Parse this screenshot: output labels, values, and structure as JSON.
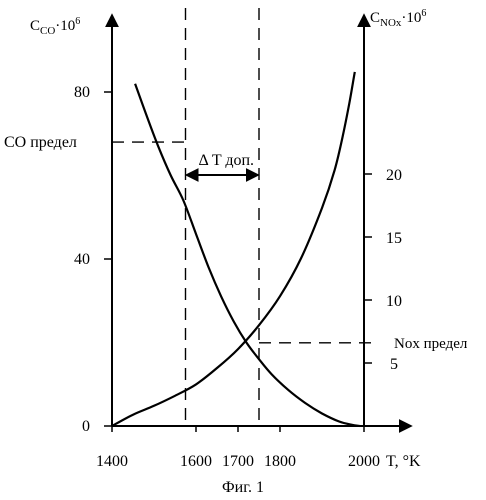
{
  "chart_data": {
    "type": "line",
    "caption": "Фиг. 1",
    "x_axis": {
      "label": "T, °K",
      "ticks": [
        1400,
        1600,
        1700,
        1800,
        2000
      ],
      "range": [
        1400,
        2000
      ]
    },
    "y_left": {
      "label_main": "C",
      "label_sub": "CO",
      "label_mult": "·10",
      "label_exp": "6",
      "range": [
        0,
        80
      ],
      "ticks": [
        0,
        40,
        80
      ]
    },
    "y_right": {
      "label_main": "C",
      "label_sub": "NOx",
      "label_mult": "·10",
      "label_exp": "6",
      "range": [
        0,
        30
      ],
      "ticks": [
        5,
        10,
        15,
        20
      ]
    },
    "series": [
      {
        "curve": "CO",
        "axis": "left",
        "x": [
          1455,
          1480,
          1510,
          1540,
          1570,
          1600,
          1630,
          1660,
          1690,
          1720,
          1750,
          1780,
          1820,
          1860,
          1900,
          1940,
          1970,
          1990
        ],
        "y": [
          82,
          75,
          67,
          60,
          54,
          46,
          38,
          31,
          25,
          20,
          16,
          12.4,
          8.6,
          5.5,
          3,
          1.1,
          0.3,
          0
        ]
      },
      {
        "curve": "NOx",
        "axis": "right",
        "x": [
          1400,
          1450,
          1500,
          1550,
          1600,
          1650,
          1700,
          1750,
          1800,
          1850,
          1900,
          1930,
          1950,
          1965,
          1978
        ],
        "y": [
          0,
          0.9,
          1.6,
          2.4,
          3.3,
          4.6,
          6.1,
          8.0,
          10.3,
          13.3,
          17.3,
          20.3,
          23.1,
          25.6,
          28.1
        ]
      }
    ],
    "limits": {
      "co_label": "CO предел",
      "co_value": 68,
      "nox_label": "Nox предел",
      "nox_value": 6.6
    },
    "verticals": [
      1575,
      1750
    ],
    "delta_label": "Δ T доп."
  }
}
